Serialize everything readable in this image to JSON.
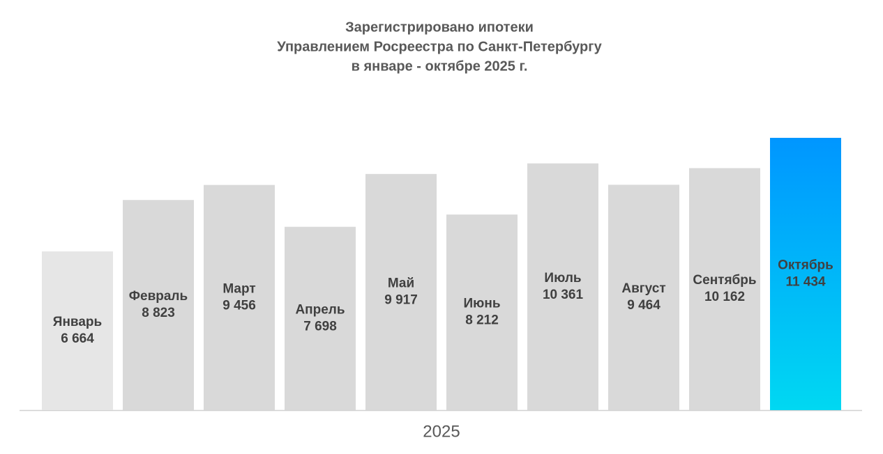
{
  "chart_data": {
    "type": "bar",
    "title": [
      "Зарегистрировано ипотеки",
      "Управлением Росреестра по Санкт-Петербургу",
      "в январе - октябре 2025 г."
    ],
    "x_label": "2025",
    "categories": [
      "Январь",
      "Февраль",
      "Март",
      "Апрель",
      "Май",
      "Июнь",
      "Июль",
      "Август",
      "Сентябрь",
      "Октябрь"
    ],
    "values": [
      6664,
      8823,
      9456,
      7698,
      9917,
      8212,
      10361,
      9464,
      10162,
      11434
    ],
    "value_labels": [
      "6 664",
      "8 823",
      "9 456",
      "7 698",
      "9 917",
      "8 212",
      "10 361",
      "9 464",
      "10 162",
      "11 434"
    ],
    "colors": [
      "#e6e6e6",
      "#d9d9d9",
      "#d9d9d9",
      "#d9d9d9",
      "#d9d9d9",
      "#d9d9d9",
      "#d9d9d9",
      "#d9d9d9",
      "#d9d9d9",
      "gradient"
    ],
    "gradient": [
      "#0096ff",
      "#00d8f2"
    ],
    "ylim": [
      0,
      12000
    ]
  }
}
